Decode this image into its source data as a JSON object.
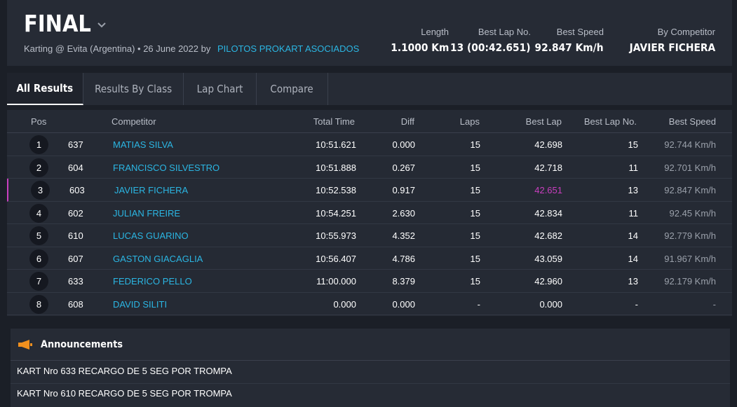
{
  "header": {
    "title": "FINAL",
    "subtitle_text": "Karting @ Evita (Argentina) • 26 June 2022 by",
    "organizer": "PILOTOS PROKART ASOCIADOS",
    "stats": [
      {
        "label": "Length",
        "value": "1.1000 Km"
      },
      {
        "label": "Best Lap No.",
        "value": "13 (00:42.651)"
      },
      {
        "label": "Best Speed",
        "value": "92.847 Km/h"
      },
      {
        "label": "By Competitor",
        "value": "JAVIER FICHERA"
      }
    ]
  },
  "tabs": [
    "All Results",
    "Results By Class",
    "Lap Chart",
    "Compare"
  ],
  "colors": {
    "accent_link": "#2bb6e3",
    "best_lap_highlight": "#c93fbf",
    "background": "#1b1f27",
    "panel": "#262b35"
  },
  "results": {
    "columns": [
      "Pos",
      "Competitor",
      "Total Time",
      "Diff",
      "Laps",
      "Best Lap",
      "Best Lap No.",
      "Best Speed"
    ],
    "rows": [
      {
        "pos": "1",
        "num": "637",
        "name": "MATIAS SILVA",
        "total": "10:51.621",
        "diff": "0.000",
        "laps": "15",
        "best_lap": "42.698",
        "best_lap_no": "15",
        "best_speed": "92.744 Km/h"
      },
      {
        "pos": "2",
        "num": "604",
        "name": "FRANCISCO SILVESTRO",
        "total": "10:51.888",
        "diff": "0.267",
        "laps": "15",
        "best_lap": "42.718",
        "best_lap_no": "11",
        "best_speed": "92.701 Km/h"
      },
      {
        "pos": "3",
        "num": "603",
        "name": "JAVIER FICHERA",
        "total": "10:52.538",
        "diff": "0.917",
        "laps": "15",
        "best_lap": "42.651",
        "best_lap_no": "13",
        "best_speed": "92.847 Km/h"
      },
      {
        "pos": "4",
        "num": "602",
        "name": "JULIAN FREIRE",
        "total": "10:54.251",
        "diff": "2.630",
        "laps": "15",
        "best_lap": "42.834",
        "best_lap_no": "11",
        "best_speed": "92.45 Km/h"
      },
      {
        "pos": "5",
        "num": "610",
        "name": "LUCAS GUARINO",
        "total": "10:55.973",
        "diff": "4.352",
        "laps": "15",
        "best_lap": "42.682",
        "best_lap_no": "14",
        "best_speed": "92.779 Km/h"
      },
      {
        "pos": "6",
        "num": "607",
        "name": "GASTON GIACAGLIA",
        "total": "10:56.407",
        "diff": "4.786",
        "laps": "15",
        "best_lap": "43.059",
        "best_lap_no": "14",
        "best_speed": "91.967 Km/h"
      },
      {
        "pos": "7",
        "num": "633",
        "name": "FEDERICO PELLO",
        "total": "11:00.000",
        "diff": "8.379",
        "laps": "15",
        "best_lap": "42.960",
        "best_lap_no": "13",
        "best_speed": "92.179 Km/h"
      },
      {
        "pos": "8",
        "num": "608",
        "name": "DAVID SILITI",
        "total": "0.000",
        "diff": "0.000",
        "laps": "-",
        "best_lap": "0.000",
        "best_lap_no": "-",
        "best_speed": "-"
      }
    ]
  },
  "announcements": {
    "title": "Announcements",
    "items": [
      "KART Nro 633 RECARGO DE 5 SEG POR TROMPA",
      "KART Nro 610 RECARGO DE 5 SEG POR TROMPA"
    ]
  }
}
